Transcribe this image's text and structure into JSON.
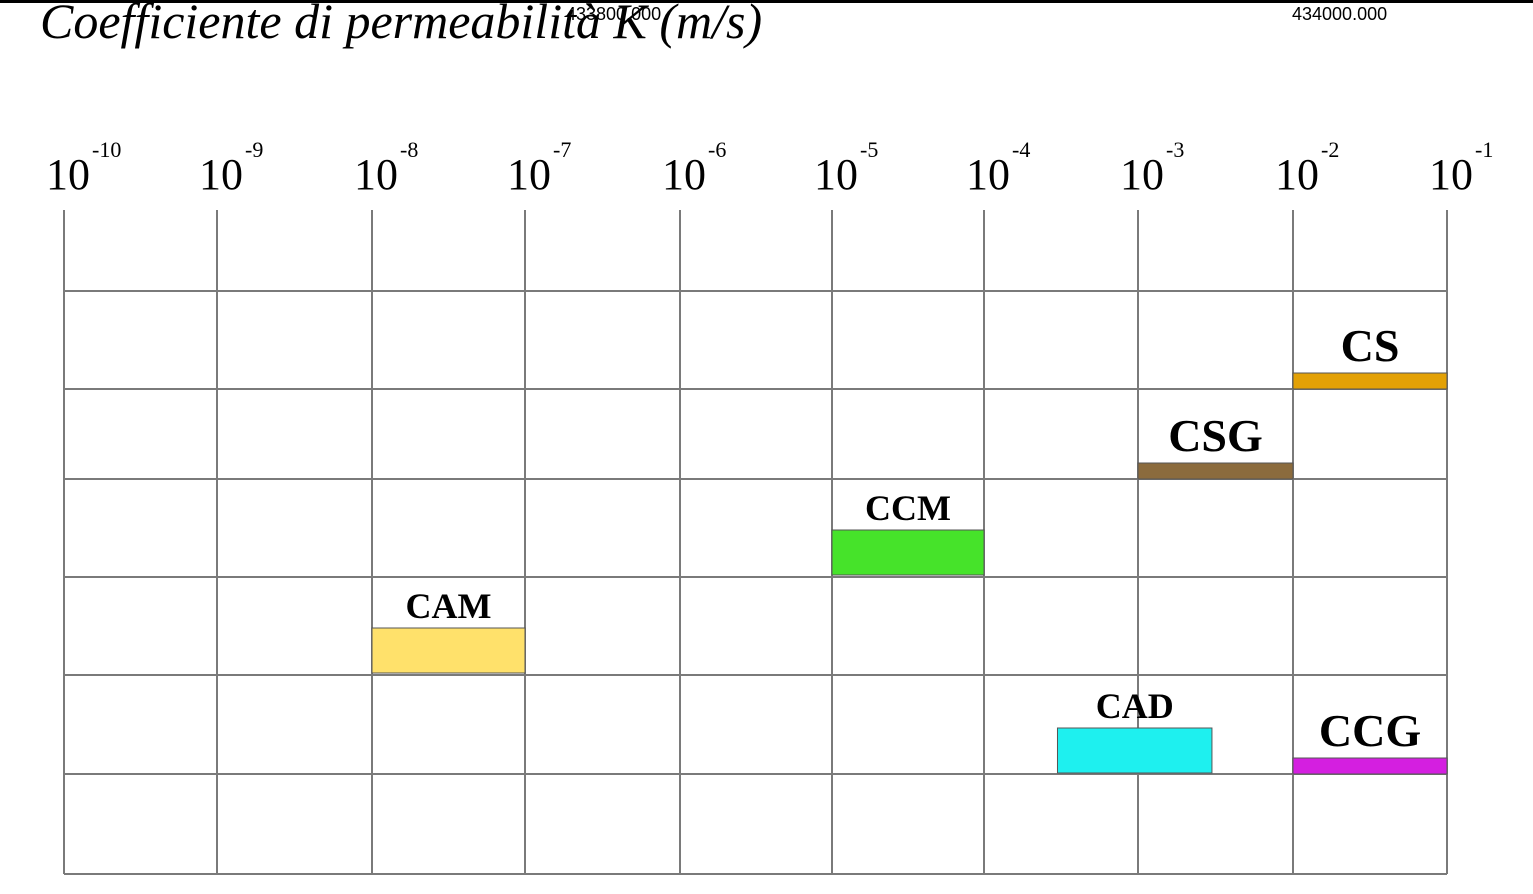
{
  "page": {
    "title": "Coefficiente di permeabilità K (m/s)",
    "coord_labels": [
      "433800.000",
      "434000.000"
    ]
  },
  "chart_data": {
    "type": "bar",
    "title": "Coefficiente di permeabilità K (m/s)",
    "xlabel": "",
    "ylabel": "",
    "x_scale": "log",
    "xlim": [
      1e-10,
      0.1
    ],
    "tick_base": "10",
    "tick_exponents": [
      "-10",
      "-9",
      "-8",
      "-7",
      "-6",
      "-5",
      "-4",
      "-3",
      "-2",
      "-1"
    ],
    "grid": true,
    "legend": "none",
    "series": [
      {
        "label": "CS",
        "k_min": 0.01,
        "k_max": 0.1,
        "row": 1,
        "color": "#e3a106"
      },
      {
        "label": "CSG",
        "k_min": 0.001,
        "k_max": 0.01,
        "row": 2,
        "color": "#8b6b3d"
      },
      {
        "label": "CCM",
        "k_min": 1e-05,
        "k_max": 0.0001,
        "row": 3,
        "color": "#46e32a"
      },
      {
        "label": "CAM",
        "k_min": 1e-08,
        "k_max": 1e-07,
        "row": 4,
        "color": "#ffe16b"
      },
      {
        "label": "CAD",
        "k_min": 0.0003,
        "k_max": 0.003,
        "row": 5,
        "color": "#1ef0ef"
      },
      {
        "label": "CCG",
        "k_min": 0.01,
        "k_max": 0.1,
        "row": 5,
        "color": "#d41fe0"
      }
    ]
  }
}
